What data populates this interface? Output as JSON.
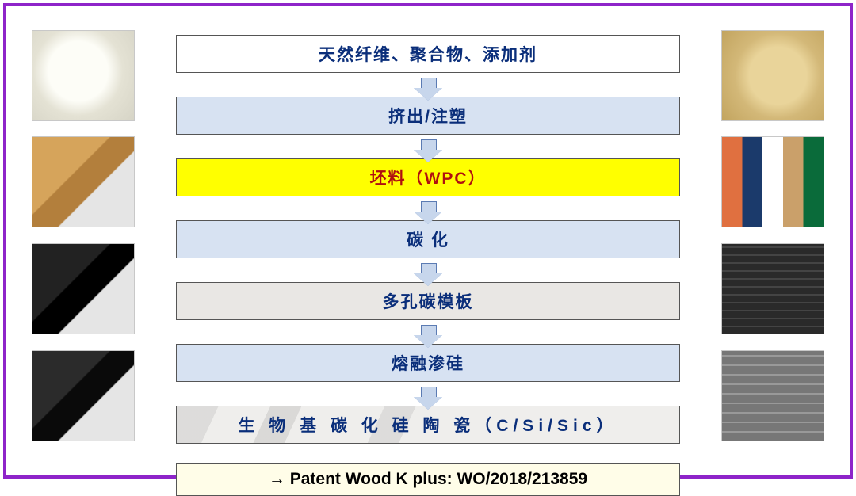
{
  "flow": {
    "steps": [
      {
        "label": "天然纤维、聚合物、添加剂",
        "style": "box-white"
      },
      {
        "label": "挤出/注塑",
        "style": "box-blue"
      },
      {
        "label": "坯料（WPC）",
        "style": "box-yellow"
      },
      {
        "label": "碳 化",
        "style": "box-blue"
      },
      {
        "label": "多孔碳模板",
        "style": "box-gray"
      },
      {
        "label": "熔融渗硅",
        "style": "box-blue"
      },
      {
        "label": "生 物 基 碳 化 硅 陶 瓷（C/Si/Sic）",
        "style": "box-marble"
      }
    ],
    "footer": "→ Patent Wood K plus: WO/2018/213859"
  },
  "colors": {
    "frame_border": "#8e24c9",
    "box_text": "#0a2e7a",
    "blue_fill": "#d7e2f2",
    "yellow_fill": "#ffff00",
    "yellow_text": "#b01010",
    "gray_fill": "#e9e7e4",
    "cream_fill": "#fffde8",
    "arrow_fill": "#c7d6ec",
    "arrow_border": "#5b7bb3"
  },
  "thumbnails": {
    "left": [
      "white-powder",
      "tan-square-tube",
      "black-square-tube",
      "black-square-tube-2"
    ],
    "right": [
      "tan-powder",
      "colored-wpc-shapes",
      "dark-decking-boards",
      "gray-extruded-profile"
    ]
  }
}
